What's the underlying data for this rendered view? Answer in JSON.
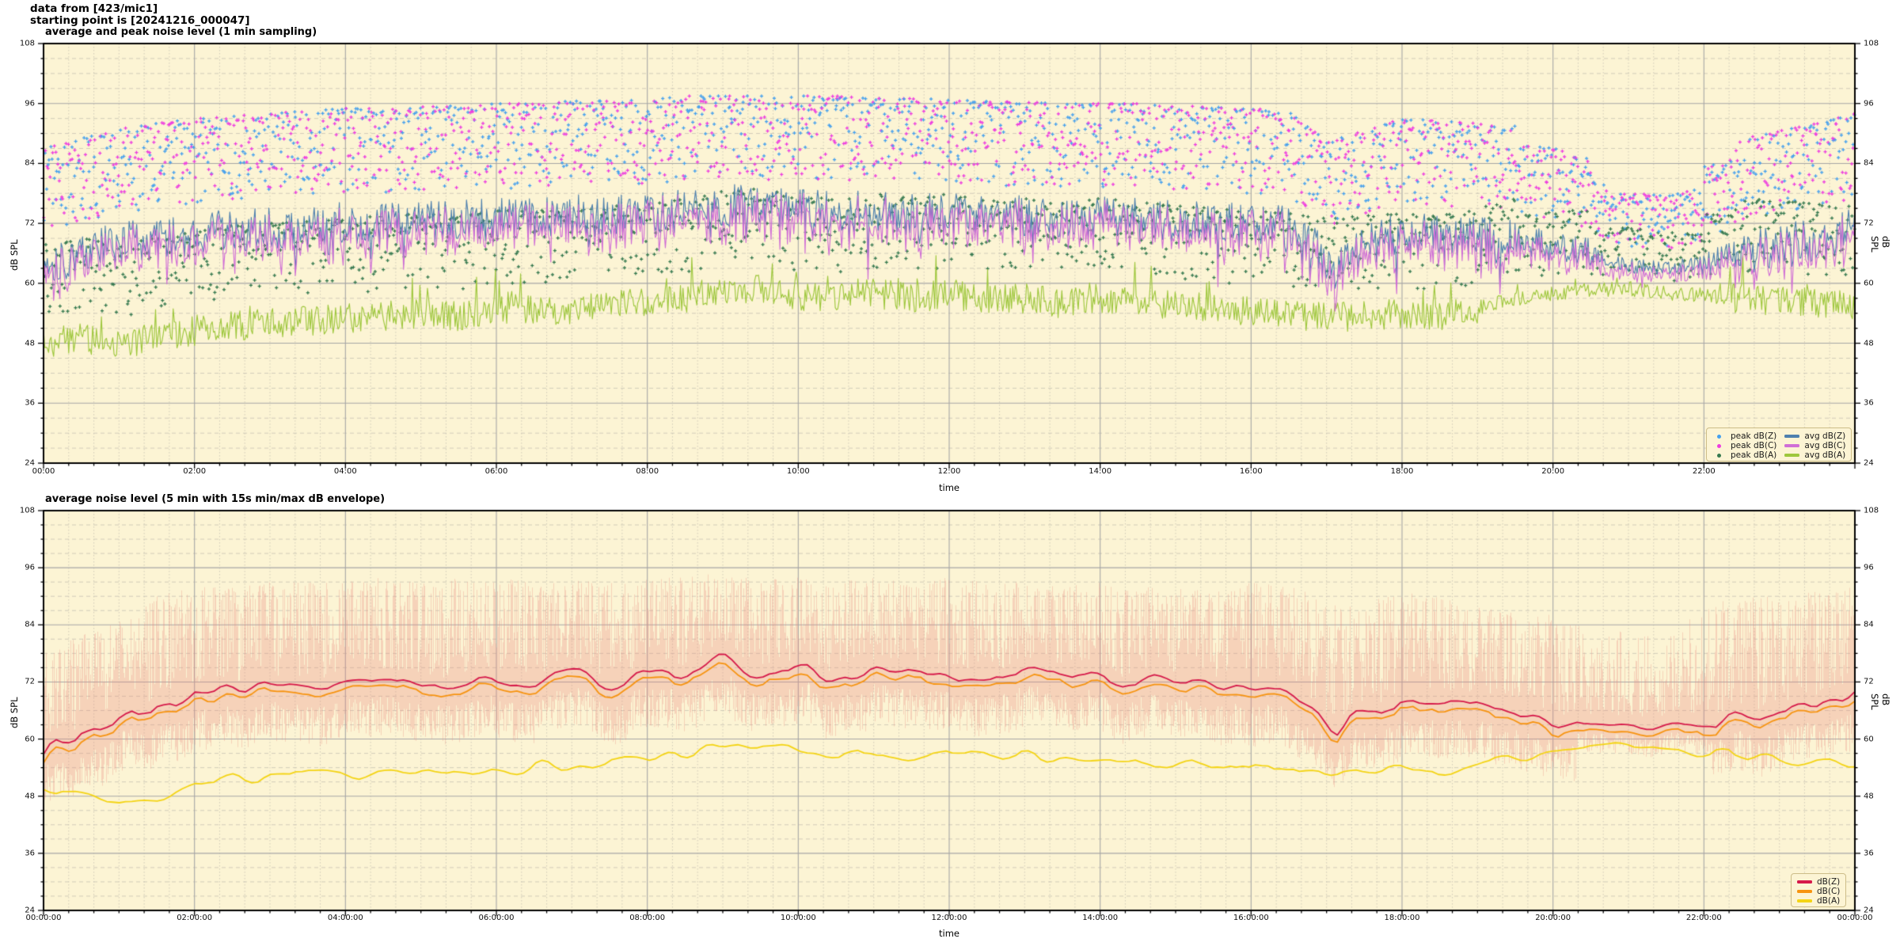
{
  "header": {
    "line1": "data from [423/mic1]",
    "line2": "starting point is [20241216_000047]"
  },
  "colors": {
    "figure_bg": "#ffffff",
    "axes_bg": "#fcf4d4",
    "grid_major": "#a6a6a6",
    "grid_minor": "#c6c2b2",
    "spine": "#000000",
    "tick_text": "#111111",
    "legend_bg": "#fcf4d4",
    "legend_border": "#cdbd88"
  },
  "chart_data": [
    {
      "type": "scatter+line",
      "title": "average and peak noise level (1 min sampling)",
      "xlabel": "time",
      "ylabel": "dB SPL",
      "ylim": [
        24,
        108
      ],
      "xlim_hours": [
        0,
        24
      ],
      "y_ticks": [
        24,
        36,
        48,
        60,
        72,
        84,
        96,
        108
      ],
      "y_tick_labels": [
        "24",
        "36",
        "48",
        "60",
        "72",
        "84",
        "96",
        "108"
      ],
      "y_minor_step_db": 3,
      "x_tick_hours": [
        0,
        2,
        4,
        6,
        8,
        10,
        12,
        14,
        16,
        18,
        20,
        22
      ],
      "x_tick_labels": [
        "00:00",
        "02:00",
        "04:00",
        "06:00",
        "08:00",
        "10:00",
        "12:00",
        "14:00",
        "16:00",
        "18:00",
        "20:00",
        "22:00"
      ],
      "x_minor_step_min": 20,
      "grid": true,
      "legend_position": "lower right",
      "legend": [
        {
          "label": "peak dB(Z)",
          "type": "dot",
          "color": "#45a0ee"
        },
        {
          "label": "peak dB(C)",
          "type": "dot",
          "color": "#ee3ce0"
        },
        {
          "label": "peak dB(A)",
          "type": "dot",
          "color": "#35794f"
        },
        {
          "label": "avg dB(Z)",
          "type": "line",
          "color": "#4e80ae"
        },
        {
          "label": "avg dB(C)",
          "type": "line",
          "color": "#d06ed6"
        },
        {
          "label": "avg dB(A)",
          "type": "line",
          "color": "#9ec73d"
        }
      ],
      "samples_per_series": 1440,
      "quiet_windows": [
        [
          19.5,
          20.5,
          0.7
        ],
        [
          20.5,
          22.0,
          0.35
        ],
        [
          22.0,
          22.4,
          0.7
        ]
      ],
      "quiet_windows_a": [
        [
          19.0,
          22.3,
          0.5
        ]
      ],
      "dips": [
        {
          "t": 17.1,
          "d": 4.0,
          "w": 0.15
        }
      ],
      "series": [
        {
          "name": "avg dB(Z)",
          "kind": "line",
          "color": "#4e80ae",
          "jitter": 4.3,
          "anchors_30min": [
            64,
            66,
            68,
            69,
            70,
            70.5,
            71,
            71.5,
            72,
            72,
            72.5,
            72.5,
            73,
            73,
            73.5,
            73.5,
            74,
            74.5,
            75.5,
            75.5,
            75,
            74.5,
            74,
            74,
            74,
            73.5,
            73.5,
            73,
            73,
            73,
            72.5,
            72.5,
            72,
            71.5,
            65.5,
            67.5,
            70,
            69.5,
            69,
            68.5,
            68,
            66,
            63.5,
            63,
            64.5,
            66,
            67.5,
            69,
            71
          ]
        },
        {
          "name": "avg dB(C)",
          "kind": "line",
          "color": "#d06ed6",
          "derived_from": "avg dB(Z)",
          "offset_db": -1.4
        },
        {
          "name": "avg dB(A)",
          "kind": "line",
          "color": "#9ec73d",
          "jitter": 3.0,
          "anchors_30min": [
            48,
            49,
            48,
            49,
            50.5,
            51.5,
            52,
            52.5,
            53,
            53.5,
            54,
            53.5,
            54.5,
            55,
            54.5,
            55.5,
            56,
            57,
            58.5,
            59,
            57.5,
            57,
            58,
            57,
            58,
            56.5,
            57,
            56,
            57,
            56.5,
            55.5,
            55,
            54.5,
            54,
            53,
            53.5,
            54,
            53.5,
            55,
            57,
            58,
            58.5,
            59,
            58,
            57.5,
            57,
            56.5,
            56,
            55.5
          ]
        },
        {
          "name": "peak dB(Z)",
          "kind": "scatter",
          "color": "#45a0ee",
          "marker": "plus",
          "cap_above_db": 23,
          "spread_db": 17,
          "base": "avg dB(Z)"
        },
        {
          "name": "peak dB(C)",
          "kind": "scatter",
          "color": "#ee3ce0",
          "marker": "plus",
          "cap_above_db": 23,
          "spread_db": 17,
          "base": "avg dB(Z)"
        },
        {
          "name": "peak dB(A)",
          "kind": "scatter",
          "color": "#35794f",
          "marker": "plus",
          "cap_above_db": 20,
          "spread_db": 15,
          "base": "avg dB(A)"
        }
      ]
    },
    {
      "type": "line+envelope",
      "title": "average noise level (5 min with 15s min/max dB envelope)",
      "xlabel": "time",
      "ylabel": "dB SPL",
      "ylim": [
        24,
        108
      ],
      "xlim_hours": [
        0,
        24
      ],
      "y_ticks": [
        24,
        36,
        48,
        60,
        72,
        84,
        96,
        108
      ],
      "y_tick_labels": [
        "24",
        "36",
        "48",
        "60",
        "72",
        "84",
        "96",
        "108"
      ],
      "y_minor_step_db": 3,
      "x_tick_hours": [
        0,
        2,
        4,
        6,
        8,
        10,
        12,
        14,
        16,
        18,
        20,
        22,
        24
      ],
      "x_tick_labels": [
        "00:00:00",
        "02:00:00",
        "04:00:00",
        "06:00:00",
        "08:00:00",
        "10:00:00",
        "12:00:00",
        "14:00:00",
        "16:00:00",
        "18:00:00",
        "20:00:00",
        "22:00:00",
        "00:00:00"
      ],
      "x_minor_step_min": 20,
      "grid": true,
      "legend_position": "lower right",
      "legend": [
        {
          "label": "dB(Z)",
          "type": "line",
          "color": "#d6194a"
        },
        {
          "label": "dB(C)",
          "type": "line",
          "color": "#f79410"
        },
        {
          "label": "dB(A)",
          "type": "line",
          "color": "#f4d414"
        }
      ],
      "samples_per_series": 288,
      "quiet_windows": [
        [
          20.3,
          22.1,
          0.45
        ]
      ],
      "dips": [
        {
          "t": 17.15,
          "d": 4.5,
          "w": 0.15
        }
      ],
      "envelope": {
        "belongs_to": "dB(Z)",
        "color": "rgba(233,139,126,0.32)",
        "min_drop_db": [
          3.5,
          12
        ],
        "top_anchors_30min": [
          80,
          82,
          85,
          90,
          92,
          92,
          93,
          93,
          93,
          94,
          93,
          94,
          94,
          93,
          94,
          93,
          94,
          94,
          95,
          94,
          94,
          93,
          94,
          93,
          94,
          93,
          93,
          92,
          93,
          92,
          92,
          91,
          93,
          92,
          90,
          89,
          91,
          90,
          88,
          87,
          86,
          84,
          83,
          82,
          88,
          90,
          90,
          91,
          92
        ]
      },
      "series": [
        {
          "name": "dB(Z)",
          "kind": "line",
          "color": "#d6194a",
          "jitter": 3.0,
          "anchors_30min": [
            58.5,
            61,
            63.5,
            66.5,
            69.5,
            70,
            70.5,
            71.5,
            71,
            72.5,
            71.5,
            72,
            72.5,
            72,
            73,
            72.5,
            73,
            74.5,
            76,
            75,
            74.5,
            73.5,
            74.5,
            73,
            74,
            72.5,
            73.5,
            73,
            73.5,
            72,
            72.5,
            71.5,
            71,
            71.5,
            66,
            65.5,
            67,
            66.5,
            67.5,
            66,
            64.5,
            63,
            62.5,
            62.5,
            63,
            64.5,
            65.5,
            66.5,
            70
          ]
        },
        {
          "name": "dB(C)",
          "kind": "line",
          "color": "#f79410",
          "derived_from": "dB(Z)",
          "offset_db": -1.7
        },
        {
          "name": "dB(A)",
          "kind": "line",
          "color": "#f4d414",
          "jitter": 2.4,
          "anchors_30min": [
            47.5,
            48.5,
            47.5,
            48.5,
            50,
            51,
            51.5,
            52,
            52.5,
            53,
            53.5,
            53,
            54,
            54.5,
            54,
            55,
            55.5,
            56.5,
            58,
            58.5,
            57,
            56.5,
            57.5,
            56.5,
            57.5,
            56,
            56.5,
            55.5,
            56.5,
            56,
            55,
            54.5,
            54,
            53.5,
            52.5,
            53,
            53.5,
            53,
            54.5,
            56.5,
            57.5,
            58,
            58.5,
            57.5,
            57,
            56.5,
            56,
            55.5,
            55
          ]
        }
      ]
    }
  ]
}
